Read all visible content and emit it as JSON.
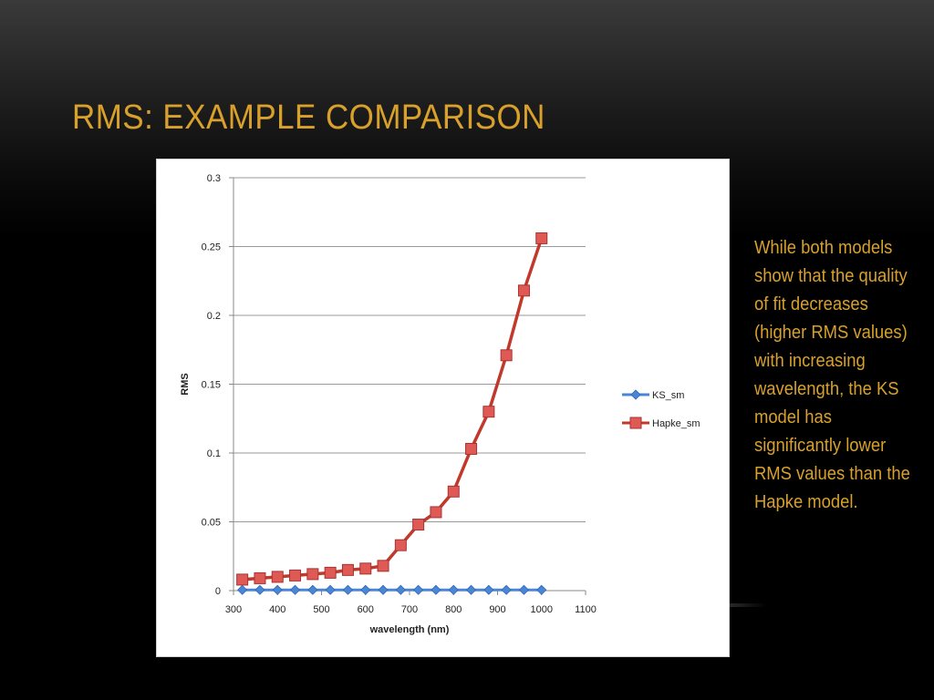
{
  "slide": {
    "title": "RMS: EXAMPLE COMPARISON",
    "body_text": "While both models show that the quality of fit decreases (higher RMS values) with increasing wavelength, the KS model has significantly lower RMS values than the Hapke model."
  },
  "colors": {
    "title": "#d9a12b",
    "body_text": "#d9a12b",
    "ks_series": "#4a86d8",
    "hapke_series": "#c0392b",
    "hapke_marker": "#e05a55"
  },
  "chart_data": {
    "type": "line",
    "title": "",
    "xlabel": "wavelength (nm)",
    "ylabel": "RMS",
    "xlim": [
      300,
      1100
    ],
    "ylim": [
      0,
      0.3
    ],
    "x_ticks": [
      "300",
      "400",
      "500",
      "600",
      "700",
      "800",
      "900",
      "1000",
      "1100"
    ],
    "y_ticks": [
      "0",
      "0.05",
      "0.1",
      "0.15",
      "0.2",
      "0.25",
      "0.3"
    ],
    "grid": true,
    "legend_position": "right",
    "x": [
      320,
      360,
      400,
      440,
      480,
      520,
      560,
      600,
      640,
      680,
      720,
      760,
      800,
      840,
      880,
      920,
      960,
      1000
    ],
    "series": [
      {
        "name": "KS_sm",
        "marker": "diamond",
        "values": [
          0.0005,
          0.0005,
          0.0005,
          0.0005,
          0.0005,
          0.0005,
          0.0005,
          0.0005,
          0.0005,
          0.0005,
          0.0005,
          0.0005,
          0.0005,
          0.0005,
          0.0005,
          0.0005,
          0.0005,
          0.0005
        ]
      },
      {
        "name": "Hapke_sm",
        "marker": "square",
        "values": [
          0.008,
          0.009,
          0.01,
          0.011,
          0.012,
          0.013,
          0.015,
          0.016,
          0.018,
          0.033,
          0.048,
          0.057,
          0.072,
          0.103,
          0.13,
          0.171,
          0.218,
          0.256
        ]
      }
    ]
  }
}
